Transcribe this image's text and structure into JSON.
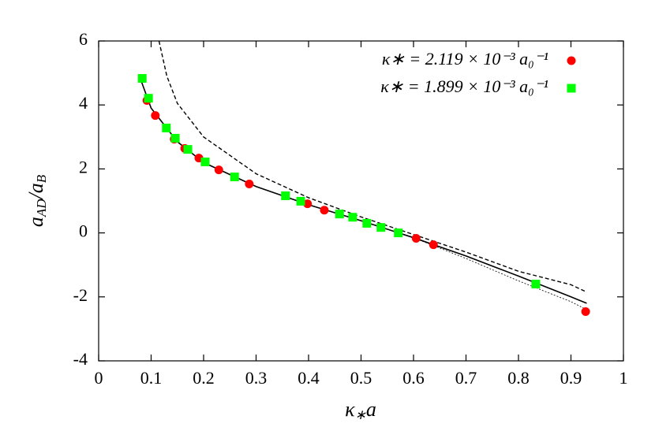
{
  "chart_data": {
    "type": "scatter",
    "x_label": [
      "κ",
      "∗",
      "a"
    ],
    "y_label": [
      "a",
      "AD",
      "/a",
      "B"
    ],
    "xlim": [
      0,
      1
    ],
    "ylim": [
      -4,
      6
    ],
    "xticks": [
      0,
      0.1,
      0.2,
      0.3,
      0.4,
      0.5,
      0.6,
      0.7,
      0.8,
      0.9,
      1
    ],
    "yticks": [
      -4,
      -2,
      0,
      2,
      4,
      6
    ],
    "legend_position": "upper right",
    "series": [
      {
        "name": "κ∗ = 2.119 × 10⁻³ a₀⁻¹",
        "color": "#ff0000",
        "marker": "circle",
        "x": [
          0.092,
          0.108,
          0.144,
          0.164,
          0.191,
          0.229,
          0.287,
          0.398,
          0.43,
          0.605,
          0.638,
          0.928
        ],
        "values": [
          4.14,
          3.67,
          2.93,
          2.64,
          2.34,
          1.97,
          1.53,
          0.91,
          0.71,
          -0.17,
          -0.37,
          -2.46
        ]
      },
      {
        "name": "κ∗ = 1.899 × 10⁻³ a₀⁻¹",
        "color": "#00ff00",
        "marker": "square",
        "x": [
          0.083,
          0.095,
          0.129,
          0.146,
          0.17,
          0.203,
          0.259,
          0.356,
          0.385,
          0.459,
          0.484,
          0.511,
          0.538,
          0.571,
          0.833
        ],
        "values": [
          4.83,
          4.21,
          3.28,
          2.96,
          2.61,
          2.22,
          1.75,
          1.16,
          0.99,
          0.59,
          0.49,
          0.3,
          0.17,
          0.0,
          -1.6
        ]
      }
    ],
    "lines": [
      {
        "style": "solid",
        "color": "#000000",
        "x": [
          0.08,
          0.1,
          0.15,
          0.2,
          0.3,
          0.4,
          0.5,
          0.6,
          0.7,
          0.8,
          0.9,
          0.93
        ],
        "values": [
          4.8,
          3.9,
          2.85,
          2.2,
          1.45,
          0.88,
          0.38,
          -0.15,
          -0.72,
          -1.35,
          -2.0,
          -2.2
        ]
      },
      {
        "style": "dashed",
        "color": "#000000",
        "x": [
          0.115,
          0.13,
          0.15,
          0.2,
          0.3,
          0.4,
          0.5,
          0.6,
          0.7,
          0.8,
          0.9,
          0.93
        ],
        "values": [
          6,
          4.9,
          4.05,
          3.0,
          1.85,
          1.1,
          0.5,
          -0.05,
          -0.6,
          -1.2,
          -1.62,
          -1.85
        ]
      },
      {
        "style": "dotted",
        "color": "#000000",
        "x": [
          0.6,
          0.7,
          0.8,
          0.9,
          0.93
        ],
        "values": [
          -0.15,
          -0.8,
          -1.5,
          -2.15,
          -2.4
        ]
      }
    ]
  }
}
